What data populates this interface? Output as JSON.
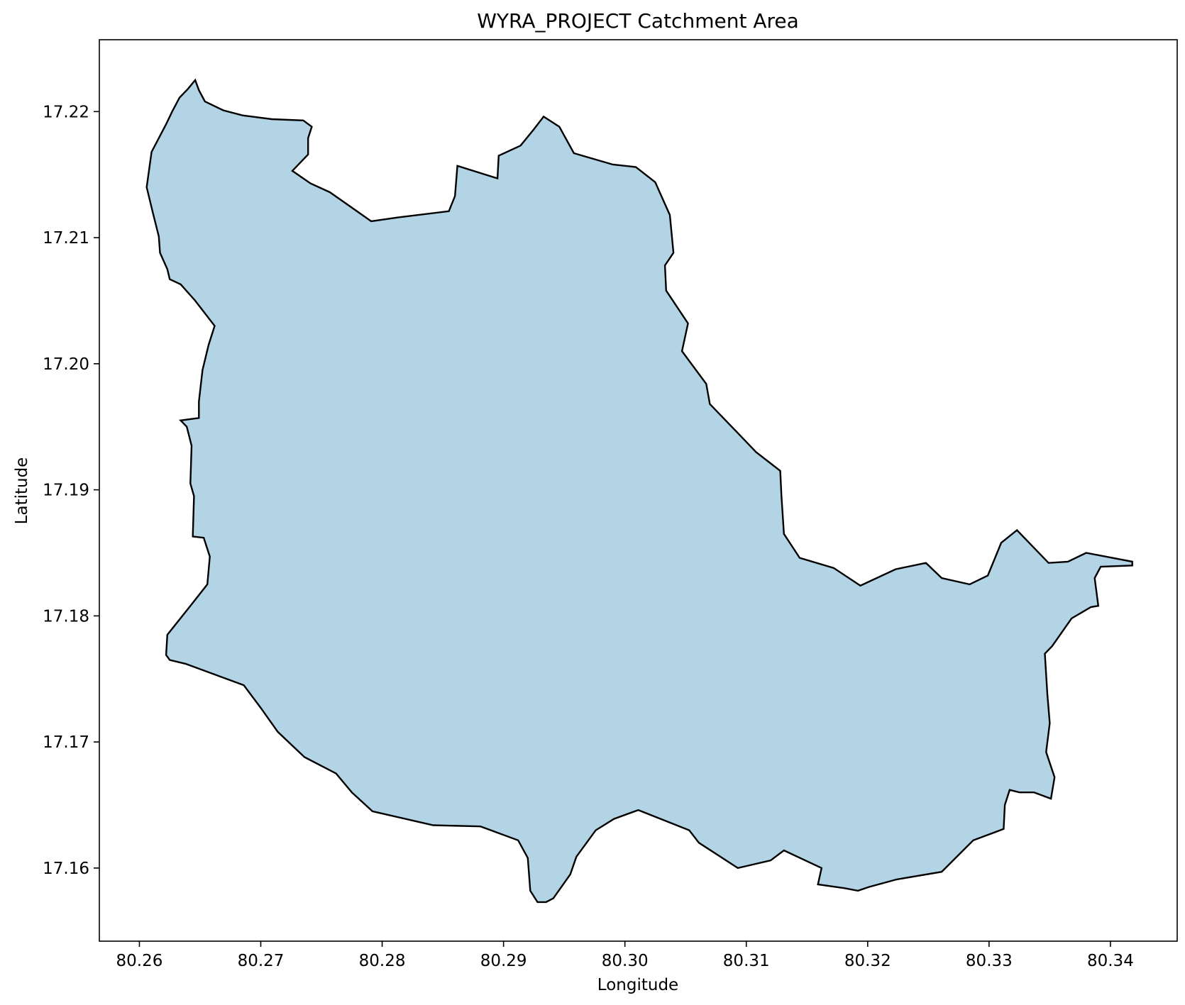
{
  "chart_data": {
    "type": "map",
    "title": "WYRA_PROJECT Catchment Area",
    "xlabel": "Longitude",
    "ylabel": "Latitude",
    "xlim": [
      80.2567,
      80.3455
    ],
    "ylim": [
      17.1542,
      17.2257
    ],
    "x_ticks": [
      80.26,
      80.27,
      80.28,
      80.29,
      80.3,
      80.31,
      80.32,
      80.33,
      80.34
    ],
    "x_tick_labels": [
      "80.26",
      "80.27",
      "80.28",
      "80.29",
      "80.30",
      "80.31",
      "80.32",
      "80.33",
      "80.34"
    ],
    "y_ticks": [
      17.16,
      17.17,
      17.18,
      17.19,
      17.2,
      17.21,
      17.22
    ],
    "y_tick_labels": [
      "17.16",
      "17.17",
      "17.18",
      "17.19",
      "17.20",
      "17.21",
      "17.22"
    ],
    "grid": false,
    "polygon_fill": "#b3d4e5",
    "polygon_edge": "#000000",
    "catchment_boundary": [
      [
        80.2646,
        17.2225
      ],
      [
        80.2649,
        17.2217
      ],
      [
        80.2654,
        17.2208
      ],
      [
        80.2669,
        17.2201
      ],
      [
        80.2685,
        17.2197
      ],
      [
        80.2709,
        17.2194
      ],
      [
        80.2735,
        17.2193
      ],
      [
        80.2742,
        17.2188
      ],
      [
        80.2739,
        17.2179
      ],
      [
        80.2739,
        17.2166
      ],
      [
        80.2726,
        17.2153
      ],
      [
        80.2741,
        17.2143
      ],
      [
        80.2757,
        17.2136
      ],
      [
        80.2791,
        17.2113
      ],
      [
        80.2813,
        17.2116
      ],
      [
        80.2855,
        17.2121
      ],
      [
        80.286,
        17.2133
      ],
      [
        80.2862,
        17.2157
      ],
      [
        80.2895,
        17.2147
      ],
      [
        80.2896,
        17.2165
      ],
      [
        80.2914,
        17.2173
      ],
      [
        80.2925,
        17.2186
      ],
      [
        80.2933,
        17.2196
      ],
      [
        80.2946,
        17.2188
      ],
      [
        80.2958,
        17.2167
      ],
      [
        80.299,
        17.2158
      ],
      [
        80.3009,
        17.2156
      ],
      [
        80.3025,
        17.2144
      ],
      [
        80.3037,
        17.2118
      ],
      [
        80.304,
        17.2088
      ],
      [
        80.3033,
        17.2078
      ],
      [
        80.3034,
        17.2058
      ],
      [
        80.3052,
        17.2032
      ],
      [
        80.3047,
        17.201
      ],
      [
        80.3067,
        17.1984
      ],
      [
        80.307,
        17.1968
      ],
      [
        80.3093,
        17.1945
      ],
      [
        80.3108,
        17.193
      ],
      [
        80.3128,
        17.1915
      ],
      [
        80.3129,
        17.1895
      ],
      [
        80.3131,
        17.1865
      ],
      [
        80.3144,
        17.1846
      ],
      [
        80.3172,
        17.1838
      ],
      [
        80.3194,
        17.1824
      ],
      [
        80.3223,
        17.1837
      ],
      [
        80.3248,
        17.1842
      ],
      [
        80.3261,
        17.183
      ],
      [
        80.3284,
        17.1825
      ],
      [
        80.3299,
        17.1832
      ],
      [
        80.331,
        17.1858
      ],
      [
        80.3323,
        17.1868
      ],
      [
        80.3349,
        17.1842
      ],
      [
        80.3365,
        17.1843
      ],
      [
        80.338,
        17.185
      ],
      [
        80.3418,
        17.1843
      ],
      [
        80.3418,
        17.184
      ],
      [
        80.3392,
        17.1839
      ],
      [
        80.3387,
        17.183
      ],
      [
        80.339,
        17.1808
      ],
      [
        80.3384,
        17.1807
      ],
      [
        80.3368,
        17.1798
      ],
      [
        80.3352,
        17.1776
      ],
      [
        80.3346,
        17.177
      ],
      [
        80.3348,
        17.1738
      ],
      [
        80.335,
        17.1715
      ],
      [
        80.3347,
        17.1692
      ],
      [
        80.3354,
        17.1672
      ],
      [
        80.3351,
        17.1655
      ],
      [
        80.3337,
        17.166
      ],
      [
        80.3325,
        17.166
      ],
      [
        80.3317,
        17.1662
      ],
      [
        80.3313,
        17.165
      ],
      [
        80.3312,
        17.1631
      ],
      [
        80.3287,
        17.1622
      ],
      [
        80.3261,
        17.1597
      ],
      [
        80.3224,
        17.1591
      ],
      [
        80.3201,
        17.1585
      ],
      [
        80.3192,
        17.1582
      ],
      [
        80.3181,
        17.1584
      ],
      [
        80.3159,
        17.1587
      ],
      [
        80.3162,
        17.16
      ],
      [
        80.3131,
        17.1614
      ],
      [
        80.312,
        17.1606
      ],
      [
        80.3093,
        17.16
      ],
      [
        80.3061,
        17.162
      ],
      [
        80.3053,
        17.163
      ],
      [
        80.3011,
        17.1646
      ],
      [
        80.2991,
        17.1639
      ],
      [
        80.2976,
        17.163
      ],
      [
        80.296,
        17.1609
      ],
      [
        80.2955,
        17.1595
      ],
      [
        80.2941,
        17.1576
      ],
      [
        80.2935,
        17.1573
      ],
      [
        80.2928,
        17.1573
      ],
      [
        80.2922,
        17.1582
      ],
      [
        80.292,
        17.1608
      ],
      [
        80.2912,
        17.1622
      ],
      [
        80.2881,
        17.1633
      ],
      [
        80.2842,
        17.1634
      ],
      [
        80.2792,
        17.1645
      ],
      [
        80.2775,
        17.166
      ],
      [
        80.2762,
        17.1675
      ],
      [
        80.2736,
        17.1688
      ],
      [
        80.2714,
        17.1708
      ],
      [
        80.27,
        17.1727
      ],
      [
        80.2686,
        17.1745
      ],
      [
        80.2638,
        17.1762
      ],
      [
        80.2625,
        17.1765
      ],
      [
        80.2622,
        17.1769
      ],
      [
        80.2623,
        17.1785
      ],
      [
        80.2628,
        17.1791
      ],
      [
        80.2642,
        17.1808
      ],
      [
        80.2656,
        17.1825
      ],
      [
        80.2658,
        17.1847
      ],
      [
        80.2653,
        17.1862
      ],
      [
        80.2644,
        17.1863
      ],
      [
        80.2645,
        17.1895
      ],
      [
        80.2642,
        17.1905
      ],
      [
        80.2643,
        17.1935
      ],
      [
        80.2639,
        17.195
      ],
      [
        80.2634,
        17.1955
      ],
      [
        80.2649,
        17.1957
      ],
      [
        80.2649,
        17.197
      ],
      [
        80.2652,
        17.1995
      ],
      [
        80.2657,
        17.2015
      ],
      [
        80.2662,
        17.203
      ],
      [
        80.2646,
        17.205
      ],
      [
        80.2634,
        17.2063
      ],
      [
        80.2625,
        17.2067
      ],
      [
        80.2623,
        17.2075
      ],
      [
        80.2617,
        17.2088
      ],
      [
        80.2616,
        17.2101
      ],
      [
        80.2611,
        17.212
      ],
      [
        80.2606,
        17.214
      ],
      [
        80.261,
        17.2168
      ],
      [
        80.2622,
        17.219
      ],
      [
        80.2627,
        17.22
      ],
      [
        80.2633,
        17.2211
      ],
      [
        80.264,
        17.2218
      ]
    ]
  }
}
